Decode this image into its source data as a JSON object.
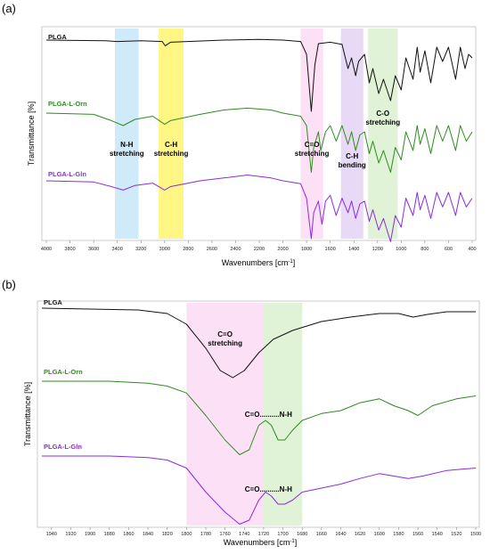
{
  "colors": {
    "PLGA": "#111111",
    "PLGA-L-Orn": "#2e8b1e",
    "PLGA-L-Gln": "#8a2be2"
  },
  "chart_data": [
    {
      "panel_label": "(a)",
      "type": "line",
      "xlabel": "Wavenumbers [cm",
      "xlabel_sup": "-1",
      "xlabel_end": "]",
      "ylabel": "Transmittance [%]",
      "x_reversed": true,
      "xlim": [
        4000,
        400
      ],
      "xticks": [
        "4000",
        "3800",
        "3600",
        "3400",
        "3200",
        "3000",
        "2800",
        "2600",
        "2400",
        "2200",
        "2000",
        "1800",
        "1600",
        "1400",
        "1200",
        "1000",
        "800",
        "600",
        "400"
      ],
      "bands": [
        {
          "label": [
            "N-H",
            "stretching"
          ],
          "from": 3420,
          "to": 3220,
          "color": "#bfe3f7"
        },
        {
          "label": [
            "C-H",
            "stretching"
          ],
          "from": 3050,
          "to": 2840,
          "color": "#fff35a"
        },
        {
          "label": [
            "C=O",
            "stretching"
          ],
          "from": 1850,
          "to": 1660,
          "color": "#fbd7f3"
        },
        {
          "label": [
            "C-H",
            "bending"
          ],
          "from": 1510,
          "to": 1320,
          "color": "#e0cdf3"
        },
        {
          "label": [
            "C-O",
            "stretching"
          ],
          "from": 1280,
          "to": 1030,
          "color": "#d6efc9"
        }
      ],
      "series": [
        {
          "name": "PLGA",
          "base": 0.93,
          "points": [
            [
              4000,
              0
            ],
            [
              3500,
              0.01
            ],
            [
              3400,
              0.02
            ],
            [
              3200,
              0.01
            ],
            [
              3020,
              0.02
            ],
            [
              2995,
              0.08
            ],
            [
              2950,
              0.03
            ],
            [
              2500,
              0.0
            ],
            [
              2200,
              -0.01
            ],
            [
              2000,
              0.0
            ],
            [
              1850,
              0.02
            ],
            [
              1800,
              0.2
            ],
            [
              1760,
              1.0
            ],
            [
              1730,
              0.35
            ],
            [
              1700,
              0.05
            ],
            [
              1600,
              0.03
            ],
            [
              1500,
              0.06
            ],
            [
              1450,
              0.4
            ],
            [
              1420,
              0.25
            ],
            [
              1385,
              0.5
            ],
            [
              1360,
              0.3
            ],
            [
              1310,
              0.2
            ],
            [
              1270,
              0.6
            ],
            [
              1240,
              0.4
            ],
            [
              1190,
              0.75
            ],
            [
              1150,
              0.55
            ],
            [
              1090,
              0.85
            ],
            [
              1050,
              0.5
            ],
            [
              1000,
              0.7
            ],
            [
              960,
              0.25
            ],
            [
              900,
              0.55
            ],
            [
              865,
              0.1
            ],
            [
              840,
              0.45
            ],
            [
              800,
              0.15
            ],
            [
              750,
              0.6
            ],
            [
              700,
              0.1
            ],
            [
              650,
              0.3
            ],
            [
              600,
              0.1
            ],
            [
              540,
              0.55
            ],
            [
              500,
              0.1
            ],
            [
              460,
              0.4
            ],
            [
              430,
              0.2
            ],
            [
              400,
              0.25
            ]
          ]
        },
        {
          "name": "PLGA-L-Orn",
          "base": 0.93,
          "points": [
            [
              4000,
              0
            ],
            [
              3600,
              0.02
            ],
            [
              3450,
              0.12
            ],
            [
              3350,
              0.2
            ],
            [
              3250,
              0.1
            ],
            [
              3100,
              0.05
            ],
            [
              3000,
              0.18
            ],
            [
              2950,
              0.12
            ],
            [
              2700,
              0.02
            ],
            [
              2500,
              -0.05
            ],
            [
              2300,
              -0.08
            ],
            [
              2100,
              -0.05
            ],
            [
              2000,
              0.0
            ],
            [
              1850,
              0.05
            ],
            [
              1800,
              0.2
            ],
            [
              1760,
              0.95
            ],
            [
              1740,
              0.55
            ],
            [
              1700,
              0.3
            ],
            [
              1680,
              0.6
            ],
            [
              1640,
              0.3
            ],
            [
              1600,
              0.2
            ],
            [
              1550,
              0.45
            ],
            [
              1500,
              0.2
            ],
            [
              1450,
              0.5
            ],
            [
              1420,
              0.3
            ],
            [
              1385,
              0.6
            ],
            [
              1350,
              0.35
            ],
            [
              1310,
              0.3
            ],
            [
              1270,
              0.65
            ],
            [
              1240,
              0.45
            ],
            [
              1190,
              0.8
            ],
            [
              1150,
              0.6
            ],
            [
              1090,
              0.95
            ],
            [
              1050,
              0.55
            ],
            [
              1000,
              0.75
            ],
            [
              960,
              0.3
            ],
            [
              900,
              0.6
            ],
            [
              865,
              0.2
            ],
            [
              840,
              0.5
            ],
            [
              800,
              0.25
            ],
            [
              750,
              0.65
            ],
            [
              700,
              0.2
            ],
            [
              650,
              0.45
            ],
            [
              600,
              0.2
            ],
            [
              540,
              0.6
            ],
            [
              500,
              0.2
            ],
            [
              450,
              0.45
            ],
            [
              400,
              0.3
            ]
          ]
        },
        {
          "name": "PLGA-L-Gln",
          "base": 0.93,
          "points": [
            [
              4000,
              0
            ],
            [
              3600,
              0.02
            ],
            [
              3450,
              0.1
            ],
            [
              3350,
              0.16
            ],
            [
              3250,
              0.08
            ],
            [
              3100,
              0.04
            ],
            [
              3000,
              0.16
            ],
            [
              2950,
              0.1
            ],
            [
              2700,
              0.0
            ],
            [
              2500,
              -0.05
            ],
            [
              2300,
              -0.1
            ],
            [
              2100,
              -0.05
            ],
            [
              2000,
              0.0
            ],
            [
              1850,
              0.05
            ],
            [
              1800,
              0.3
            ],
            [
              1760,
              1.0
            ],
            [
              1740,
              0.55
            ],
            [
              1700,
              0.35
            ],
            [
              1670,
              0.75
            ],
            [
              1640,
              0.35
            ],
            [
              1600,
              0.25
            ],
            [
              1550,
              0.6
            ],
            [
              1500,
              0.3
            ],
            [
              1450,
              0.55
            ],
            [
              1420,
              0.35
            ],
            [
              1385,
              0.65
            ],
            [
              1350,
              0.4
            ],
            [
              1310,
              0.35
            ],
            [
              1270,
              0.7
            ],
            [
              1240,
              0.5
            ],
            [
              1190,
              0.85
            ],
            [
              1150,
              0.65
            ],
            [
              1090,
              1.05
            ],
            [
              1050,
              0.6
            ],
            [
              1000,
              0.8
            ],
            [
              960,
              0.3
            ],
            [
              900,
              0.6
            ],
            [
              865,
              0.2
            ],
            [
              840,
              0.5
            ],
            [
              800,
              0.25
            ],
            [
              750,
              0.65
            ],
            [
              700,
              0.2
            ],
            [
              650,
              0.45
            ],
            [
              600,
              0.2
            ],
            [
              540,
              0.6
            ],
            [
              500,
              0.2
            ],
            [
              450,
              0.45
            ],
            [
              400,
              0.3
            ]
          ]
        }
      ]
    },
    {
      "panel_label": "(b)",
      "type": "line",
      "xlabel": "Wavenumbers [cm",
      "xlabel_sup": "-1",
      "xlabel_end": "]",
      "ylabel": "Transmittance [%]",
      "x_reversed": true,
      "xlim": [
        1950,
        1500
      ],
      "xticks": [
        "1940",
        "1920",
        "1900",
        "1880",
        "1860",
        "1840",
        "1820",
        "1800",
        "1780",
        "1760",
        "1740",
        "1720",
        "1700",
        "1680",
        "1660",
        "1640",
        "1620",
        "1600",
        "1580",
        "1560",
        "1540",
        "1520",
        "1500"
      ],
      "bands": [
        {
          "label": [
            "C=O",
            "stretching"
          ],
          "from": 1800,
          "to": 1720,
          "color": "#fbd7f3"
        },
        {
          "label": [
            "C=O..........N-H"
          ],
          "from": 1720,
          "to": 1680,
          "color": "#d6efc9"
        }
      ],
      "annotations": [
        {
          "text": "C=O..........N-H",
          "x": 1715,
          "series": "PLGA-L-Orn"
        },
        {
          "text": "C=O..........N-H",
          "x": 1715,
          "series": "PLGA-L-Gln"
        }
      ],
      "series": [
        {
          "name": "PLGA",
          "base": 0.93,
          "points": [
            [
              1950,
              0
            ],
            [
              1900,
              0.01
            ],
            [
              1850,
              0.02
            ],
            [
              1820,
              0.06
            ],
            [
              1800,
              0.18
            ],
            [
              1780,
              0.45
            ],
            [
              1765,
              0.7
            ],
            [
              1752,
              0.78
            ],
            [
              1740,
              0.7
            ],
            [
              1725,
              0.5
            ],
            [
              1710,
              0.35
            ],
            [
              1690,
              0.25
            ],
            [
              1660,
              0.15
            ],
            [
              1630,
              0.1
            ],
            [
              1600,
              0.06
            ],
            [
              1580,
              0.06
            ],
            [
              1565,
              0.1
            ],
            [
              1550,
              0.07
            ],
            [
              1530,
              0.04
            ],
            [
              1500,
              0.04
            ]
          ]
        },
        {
          "name": "PLGA-L-Orn",
          "base": 0.93,
          "points": [
            [
              1950,
              0
            ],
            [
              1880,
              0.0
            ],
            [
              1840,
              0.02
            ],
            [
              1820,
              0.05
            ],
            [
              1800,
              0.12
            ],
            [
              1780,
              0.35
            ],
            [
              1760,
              0.6
            ],
            [
              1745,
              0.75
            ],
            [
              1735,
              0.7
            ],
            [
              1725,
              0.45
            ],
            [
              1718,
              0.4
            ],
            [
              1712,
              0.45
            ],
            [
              1705,
              0.6
            ],
            [
              1698,
              0.6
            ],
            [
              1690,
              0.5
            ],
            [
              1680,
              0.4
            ],
            [
              1660,
              0.33
            ],
            [
              1640,
              0.3
            ],
            [
              1620,
              0.22
            ],
            [
              1600,
              0.18
            ],
            [
              1585,
              0.25
            ],
            [
              1570,
              0.3
            ],
            [
              1560,
              0.35
            ],
            [
              1545,
              0.25
            ],
            [
              1520,
              0.18
            ],
            [
              1500,
              0.15
            ]
          ]
        },
        {
          "name": "PLGA-L-Gln",
          "base": 0.93,
          "points": [
            [
              1950,
              0
            ],
            [
              1880,
              0.0
            ],
            [
              1840,
              0.02
            ],
            [
              1820,
              0.05
            ],
            [
              1800,
              0.15
            ],
            [
              1780,
              0.45
            ],
            [
              1760,
              0.7
            ],
            [
              1745,
              0.85
            ],
            [
              1735,
              0.8
            ],
            [
              1725,
              0.55
            ],
            [
              1718,
              0.45
            ],
            [
              1712,
              0.5
            ],
            [
              1705,
              0.6
            ],
            [
              1698,
              0.6
            ],
            [
              1690,
              0.55
            ],
            [
              1680,
              0.45
            ],
            [
              1660,
              0.4
            ],
            [
              1640,
              0.35
            ],
            [
              1620,
              0.28
            ],
            [
              1600,
              0.22
            ],
            [
              1585,
              0.25
            ],
            [
              1570,
              0.28
            ],
            [
              1555,
              0.25
            ],
            [
              1530,
              0.18
            ],
            [
              1500,
              0.15
            ]
          ]
        }
      ]
    }
  ]
}
